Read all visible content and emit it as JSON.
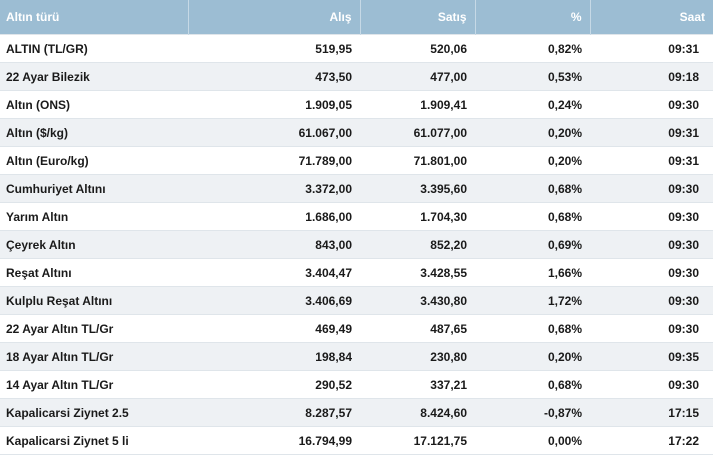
{
  "table": {
    "headers": [
      "Altın türü",
      "Alış",
      "Satış",
      "%",
      "Saat"
    ],
    "rows": [
      {
        "name": "ALTIN (TL/GR)",
        "buy": "519,95",
        "sell": "520,06",
        "pct": "0,82%",
        "time": "09:31"
      },
      {
        "name": "22 Ayar Bilezik",
        "buy": "473,50",
        "sell": "477,00",
        "pct": "0,53%",
        "time": "09:18"
      },
      {
        "name": "Altın (ONS)",
        "buy": "1.909,05",
        "sell": "1.909,41",
        "pct": "0,24%",
        "time": "09:30"
      },
      {
        "name": "Altın ($/kg)",
        "buy": "61.067,00",
        "sell": "61.077,00",
        "pct": "0,20%",
        "time": "09:31"
      },
      {
        "name": "Altın (Euro/kg)",
        "buy": "71.789,00",
        "sell": "71.801,00",
        "pct": "0,20%",
        "time": "09:31"
      },
      {
        "name": "Cumhuriyet Altını",
        "buy": "3.372,00",
        "sell": "3.395,60",
        "pct": "0,68%",
        "time": "09:30"
      },
      {
        "name": "Yarım Altın",
        "buy": "1.686,00",
        "sell": "1.704,30",
        "pct": "0,68%",
        "time": "09:30"
      },
      {
        "name": "Çeyrek Altın",
        "buy": "843,00",
        "sell": "852,20",
        "pct": "0,69%",
        "time": "09:30"
      },
      {
        "name": "Reşat Altını",
        "buy": "3.404,47",
        "sell": "3.428,55",
        "pct": "1,66%",
        "time": "09:30"
      },
      {
        "name": "Kulplu Reşat Altını",
        "buy": "3.406,69",
        "sell": "3.430,80",
        "pct": "1,72%",
        "time": "09:30"
      },
      {
        "name": "22 Ayar Altın TL/Gr",
        "buy": "469,49",
        "sell": "487,65",
        "pct": "0,68%",
        "time": "09:30"
      },
      {
        "name": "18 Ayar Altın TL/Gr",
        "buy": "198,84",
        "sell": "230,80",
        "pct": "0,20%",
        "time": "09:35"
      },
      {
        "name": "14 Ayar Altın TL/Gr",
        "buy": "290,52",
        "sell": "337,21",
        "pct": "0,68%",
        "time": "09:30"
      },
      {
        "name": "Kapalicarsi Ziynet 2.5",
        "buy": "8.287,57",
        "sell": "8.424,60",
        "pct": "-0,87%",
        "time": "17:15"
      },
      {
        "name": "Kapalicarsi Ziynet 5 li",
        "buy": "16.794,99",
        "sell": "17.121,75",
        "pct": "0,00%",
        "time": "17:22"
      }
    ]
  },
  "colors": {
    "header_bg": "#9cbdd3",
    "header_text": "#ffffff",
    "row_alt_bg": "#eef1f4"
  }
}
